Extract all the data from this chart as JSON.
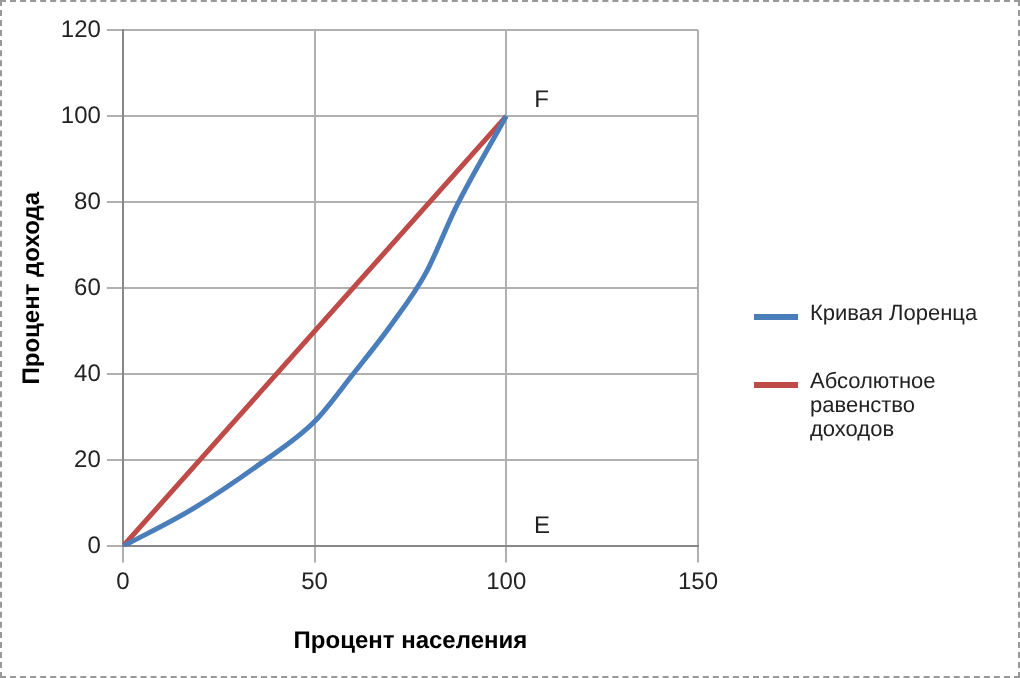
{
  "chart_data": {
    "type": "line",
    "xlabel": "Процент населения",
    "ylabel": "Процент дохода",
    "xlim": [
      0,
      150
    ],
    "xticks": [
      0,
      50,
      100,
      150
    ],
    "ylim": [
      0,
      120
    ],
    "yticks": [
      0,
      20,
      40,
      60,
      80,
      100,
      120
    ],
    "grid": true,
    "legend": "right",
    "marker": "none",
    "series": [
      {
        "name": "Кривая Лоренца",
        "color": "#4a7ebb",
        "x": [
          0,
          18,
          35.5,
          50,
          60,
          70,
          79,
          87,
          100
        ],
        "values": [
          0,
          8.6,
          19,
          29,
          40,
          51.5,
          63.5,
          79,
          100
        ]
      },
      {
        "name": "Абсолютное равенство доходов",
        "color": "#be4b48",
        "x": [
          0,
          100
        ],
        "values": [
          0,
          100
        ]
      }
    ],
    "annotations": [
      {
        "text": "F",
        "x": 100,
        "y": 100
      },
      "E"
    ]
  }
}
